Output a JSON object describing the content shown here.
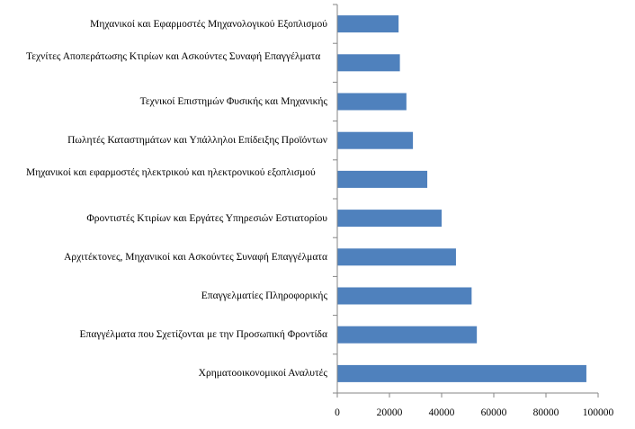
{
  "chart_data": {
    "type": "bar",
    "orientation": "horizontal",
    "categories": [
      "Μηχανικοί και Εφαρμοστές Μηχανολογικού Εξοπλισμού",
      "Τεχνίτες Αποπεράτωσης Κτιρίων και Ασκούντες Συναφή Επαγγέλματα",
      "Τεχνικοί Επιστημών Φυσικής και Μηχανικής",
      "Πωλητές Καταστημάτων και Υπάλληλοι Επίδειξης Προϊόντων",
      "Μηχανικοί και εφαρμοστές ηλεκτρικού και ηλεκτρονικού εξοπλισμού",
      "Φροντιστές Κτιρίων και Εργάτες Υπηρεσιών Εστιατορίου",
      "Αρχιτέκτονες, Μηχανικοί και Ασκούντες Συναφή Επαγγέλματα",
      "Επαγγελματίες Πληροφορικής",
      "Επαγγέλματα που Σχετίζονται με την Προσωπική Φροντίδα",
      "Χρηματοοικονομικοί Αναλυτές"
    ],
    "values": [
      23500,
      24000,
      26500,
      29000,
      34500,
      40000,
      45500,
      51500,
      53500,
      95500
    ],
    "xlim": [
      0,
      100000
    ],
    "xticks": [
      "0",
      "20000",
      "40000",
      "60000",
      "80000",
      "100000"
    ],
    "title": "",
    "xlabel": "",
    "ylabel": "",
    "grid": false,
    "legend": "none",
    "bar_color": "#4F81BD"
  }
}
